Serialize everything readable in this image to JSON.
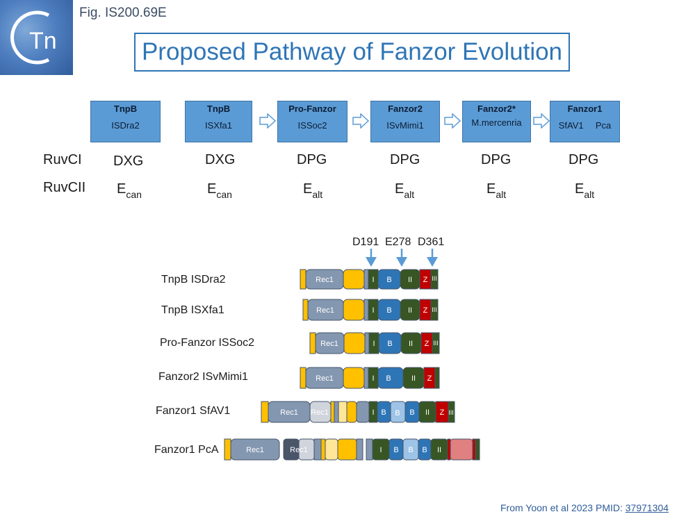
{
  "fig_label": "Fig. IS200.69E",
  "logo_text": "Tn",
  "title": "Proposed Pathway of Fanzor Evolution",
  "stages": [
    {
      "header": "TnpB",
      "name": "ISDra2",
      "ruvc1": "DXG",
      "ruvc2_base": "E",
      "ruvc2_sub": "can"
    },
    {
      "header": "TnpB",
      "name": "ISXfa1",
      "ruvc1": "DXG",
      "ruvc2_base": "E",
      "ruvc2_sub": "can"
    },
    {
      "header": "Pro-Fanzor",
      "name": "ISSoc2",
      "ruvc1": "DPG",
      "ruvc2_base": "E",
      "ruvc2_sub": "alt"
    },
    {
      "header": "Fanzor2",
      "name": "ISvMimi1",
      "ruvc1": "DPG",
      "ruvc2_base": "E",
      "ruvc2_sub": "alt"
    },
    {
      "header": "Fanzor2*",
      "name": "M.mercenria",
      "ruvc1": "DPG",
      "ruvc2_base": "E",
      "ruvc2_sub": "alt"
    },
    {
      "header": "Fanzor1",
      "name": "SfAV1",
      "name2": "Pca",
      "ruvc1": "DPG",
      "ruvc2_base": "E",
      "ruvc2_sub": "alt"
    }
  ],
  "row_labels": {
    "ruvc1": "RuvCI",
    "ruvc2": "RuvCII"
  },
  "positions": [
    "D191",
    "E278",
    "D361"
  ],
  "domain_labels": {
    "rec1": "Rec1",
    "ruvc_i": "I",
    "ruvc_ii": "II",
    "ruvc_iii": "III",
    "bridge": "B",
    "zinc": "Z"
  },
  "proteins": [
    {
      "label": "TnpB ISDra2"
    },
    {
      "label": "TnpB ISXfa1"
    },
    {
      "label": "Pro-Fanzor ISSoc2"
    },
    {
      "label": "Fanzor2 ISvMimi1"
    },
    {
      "label": "Fanzor1 SfAV1"
    },
    {
      "label": "Fanzor1 PcA"
    }
  ],
  "colors": {
    "accent": "#2e75b6",
    "stage_fill": "#5b9bd5",
    "rec1": "#8497b0",
    "gold": "#ffc000",
    "pale_gold": "#ffe699",
    "bridge": "#2e75b6",
    "bridge_light": "#9dc3e6",
    "ruvc": "#375623",
    "zinc": "#c00000",
    "zinc_light": "#e08080"
  },
  "credit": {
    "prefix": "From Yoon et al 2023 PMID:",
    "pmid": "37971304"
  }
}
